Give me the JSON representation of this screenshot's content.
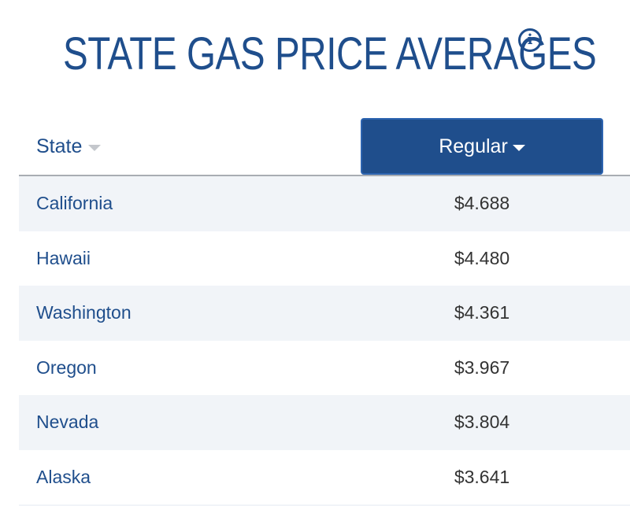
{
  "header": {
    "title": "STATE GAS PRICE AVERAGES",
    "info_icon": "info-icon"
  },
  "table": {
    "columns": {
      "state": "State",
      "regular": "Regular"
    },
    "sort": {
      "column": "Regular",
      "direction": "descending"
    },
    "rows": [
      {
        "state": "California",
        "price": "$4.688"
      },
      {
        "state": "Hawaii",
        "price": "$4.480"
      },
      {
        "state": "Washington",
        "price": "$4.361"
      },
      {
        "state": "Oregon",
        "price": "$3.967"
      },
      {
        "state": "Nevada",
        "price": "$3.804"
      },
      {
        "state": "Alaska",
        "price": "$3.641"
      }
    ]
  },
  "colors": {
    "brand_blue": "#1f4e8c",
    "row_shade": "#f1f4f8",
    "price_text": "#333333"
  }
}
